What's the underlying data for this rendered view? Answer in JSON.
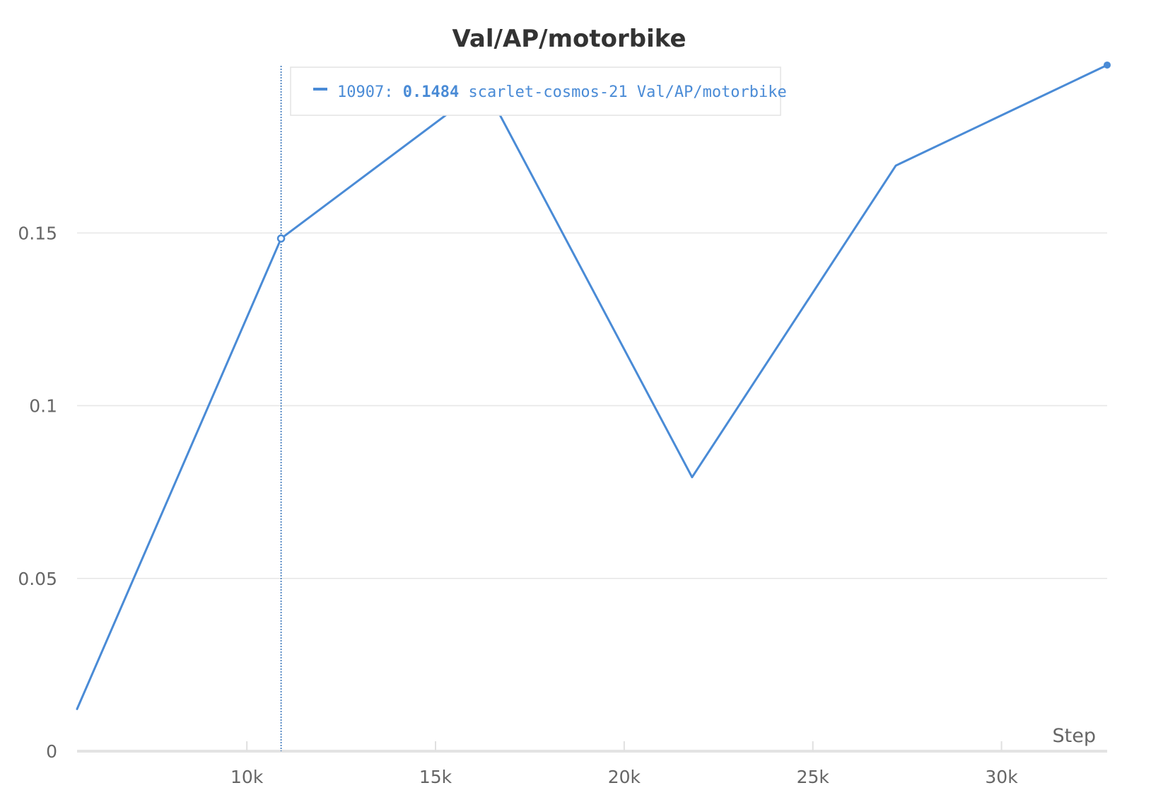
{
  "chart_data": {
    "type": "line",
    "title": "Val/AP/motorbike",
    "xlabel": "Step",
    "ylabel": "",
    "xlim": [
      5500,
      32800
    ],
    "ylim": [
      0,
      0.199
    ],
    "xticks": [
      10000,
      15000,
      20000,
      25000,
      30000
    ],
    "xtick_labels": [
      "10k",
      "15k",
      "20k",
      "25k",
      "30k"
    ],
    "yticks": [
      0,
      0.05,
      0.1,
      0.15
    ],
    "ytick_labels": [
      "0",
      "0.05",
      "0.1",
      "0.15"
    ],
    "grid": true,
    "series": [
      {
        "name": "scarlet-cosmos-21 Val/AP/motorbike",
        "color": "#4a8bd6",
        "x": [
          5500,
          10907,
          16300,
          21800,
          27200,
          32800
        ],
        "y": [
          0.0122,
          0.1484,
          0.1925,
          0.0793,
          0.1695,
          0.1986
        ]
      }
    ],
    "hover": {
      "x": 10907,
      "y": 0.1484,
      "step_label": "10907:",
      "value_label": "0.1484",
      "series_label": "scarlet-cosmos-21 Val/AP/motorbike"
    }
  }
}
